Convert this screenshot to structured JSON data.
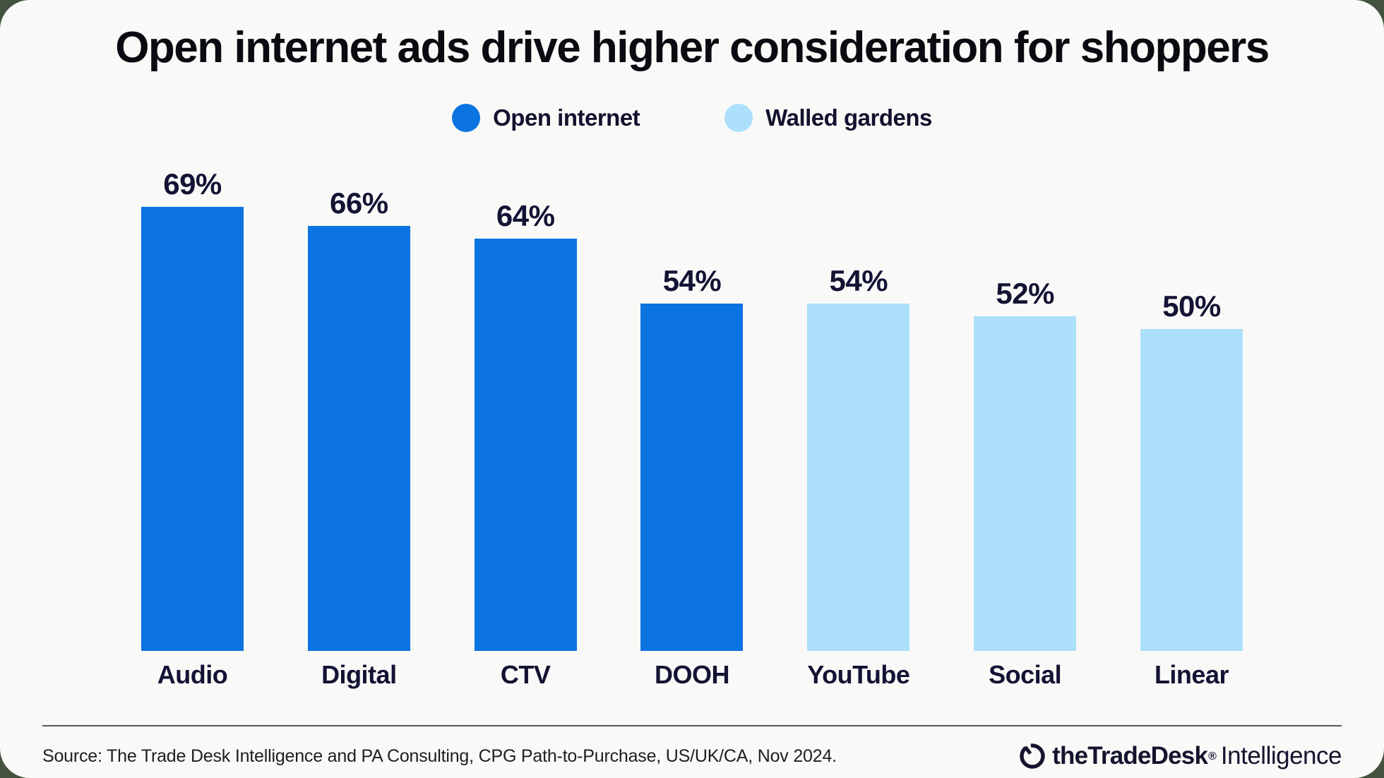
{
  "title": "Open internet ads drive higher consideration for shoppers",
  "legend": [
    {
      "label": "Open internet",
      "color": "#0b74e0"
    },
    {
      "label": "Walled gardens",
      "color": "#ace0fb"
    }
  ],
  "chart_data": {
    "type": "bar",
    "title": "Open internet ads drive higher consideration for shoppers",
    "categories": [
      "Audio",
      "Digital",
      "CTV",
      "DOOH",
      "YouTube",
      "Social",
      "Linear"
    ],
    "values": [
      69,
      66,
      64,
      54,
      54,
      52,
      50
    ],
    "value_labels": [
      "69%",
      "66%",
      "64%",
      "54%",
      "54%",
      "52%",
      "50%"
    ],
    "bar_series": [
      0,
      0,
      0,
      0,
      1,
      1,
      1
    ],
    "series": [
      {
        "name": "Open internet",
        "color": "#0b74e0",
        "categories": [
          "Audio",
          "Digital",
          "CTV",
          "DOOH"
        ],
        "values": [
          69,
          66,
          64,
          54
        ]
      },
      {
        "name": "Walled gardens",
        "color": "#ace0fb",
        "categories": [
          "YouTube",
          "Social",
          "Linear"
        ],
        "values": [
          54,
          52,
          50
        ]
      }
    ],
    "ylim": [
      0,
      100
    ],
    "unit": "%",
    "grid": false,
    "legend_position": "top-center",
    "axes_visible": false
  },
  "footer": {
    "source": "Source: The Trade Desk Intelligence and PA Consulting, CPG Path-to-Purchase, US/UK/CA, Nov 2024.",
    "brand_bold": "theTradeDesk",
    "brand_reg": "®",
    "brand_suffix": "Intelligence"
  },
  "colors": {
    "open_internet": "#0b74e0",
    "walled_gardens": "#ace0fb",
    "card_background": "#f9f9f8",
    "page_background": "#43523e",
    "text_navy": "#131334",
    "divider": "#56575b"
  }
}
